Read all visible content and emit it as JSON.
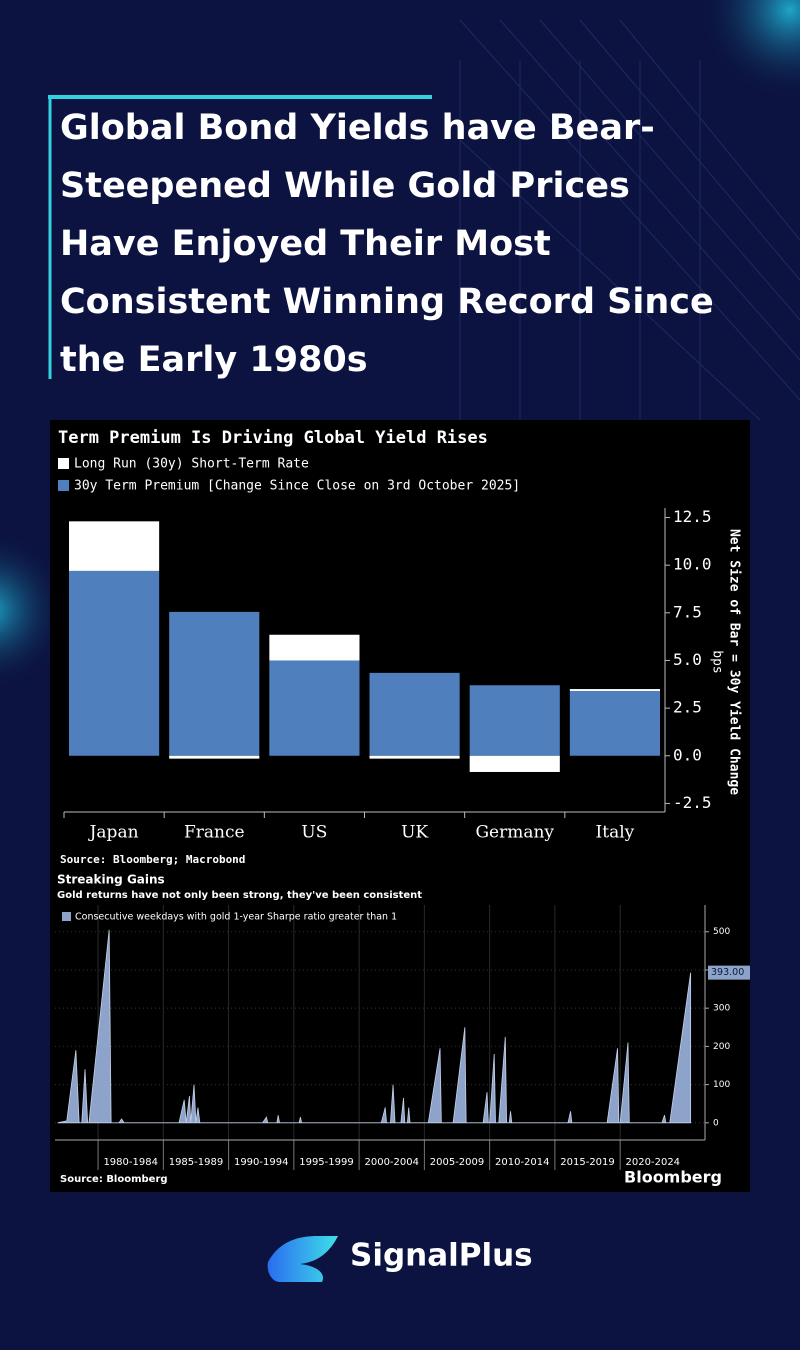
{
  "header": {
    "title": "Global Bond Yields have Bear-Steepened While Gold Prices Have Enjoyed Their Most Consistent Winning Record Since the Early 1980s"
  },
  "chart_data": [
    {
      "type": "bar",
      "stacked": true,
      "title": "Term Premium Is Driving Global Yield Rises",
      "categories": [
        "Japan",
        "France",
        "US",
        "UK",
        "Germany",
        "Italy"
      ],
      "series": [
        {
          "name": "Long Run (30y) Short-Term Rate",
          "color": "#ffffff",
          "values": [
            2.6,
            -0.15,
            1.35,
            -0.15,
            -0.85,
            0.1
          ]
        },
        {
          "name": "30y Term Premium [Change Since Close on 3rd October 2025]",
          "color": "#4f7fbd",
          "values": [
            9.7,
            7.55,
            5.0,
            4.35,
            3.7,
            3.4
          ]
        }
      ],
      "ylabel": "Net Size of Bar = 30y Yield Change",
      "yunit": "bps",
      "ylim": [
        -2.95,
        13.0
      ],
      "yticks": [
        12.5,
        {
          "value": 10,
          "label": "10.0"
        },
        7.5,
        {
          "value": 5,
          "label": "5.0"
        },
        2.5,
        {
          "value": 0,
          "label": "0.0"
        },
        -2.5
      ],
      "grid": false,
      "source": "Source: Bloomberg; Macrobond"
    },
    {
      "type": "area",
      "title": "Streaking Gains",
      "subtitle": "Gold returns have not only been strong, they've been consistent",
      "x": [
        1976.9,
        1977.6,
        1978.3,
        1978.55,
        1978.75,
        1979.0,
        1979.2,
        1979.3,
        1980.85,
        1981.0,
        1981.6,
        1981.8,
        1982.0,
        1986.2,
        1986.6,
        1986.75,
        1987.0,
        1987.1,
        1987.35,
        1987.5,
        1987.65,
        1987.8,
        1992.6,
        1992.9,
        1993.0,
        1993.7,
        1993.8,
        1993.9,
        1995.4,
        1995.5,
        1995.6,
        2001.7,
        2002.0,
        2002.1,
        2002.4,
        2002.6,
        2002.75,
        2003.2,
        2003.4,
        2003.5,
        2003.7,
        2003.8,
        2003.9,
        2005.3,
        2006.2,
        2006.3,
        2007.2,
        2008.1,
        2008.2,
        2009.5,
        2009.8,
        2009.9,
        2010.0,
        2010.35,
        2010.45,
        2010.7,
        2011.2,
        2011.3,
        2011.5,
        2011.6,
        2011.7,
        2016.0,
        2016.2,
        2016.3,
        2019.0,
        2019.8,
        2019.9,
        2020.0,
        2020.6,
        2020.7,
        2023.2,
        2023.4,
        2023.5,
        2023.8,
        2025.4
      ],
      "series": [
        {
          "name": "Consecutive weekdays with gold 1-year Sharpe ratio greater than 1",
          "color": "#8ea3c9",
          "values": [
            0,
            5,
            190,
            0,
            0,
            140,
            0,
            0,
            505,
            0,
            0,
            10,
            0,
            0,
            60,
            0,
            70,
            0,
            100,
            0,
            40,
            0,
            0,
            15,
            0,
            0,
            20,
            0,
            0,
            15,
            0,
            0,
            40,
            0,
            0,
            100,
            0,
            0,
            65,
            0,
            0,
            40,
            0,
            0,
            195,
            0,
            0,
            250,
            0,
            0,
            80,
            0,
            0,
            180,
            0,
            0,
            225,
            0,
            0,
            30,
            0,
            0,
            30,
            0,
            0,
            195,
            0,
            0,
            210,
            0,
            0,
            20,
            0,
            0,
            393
          ],
          "value_labels": [
            null,
            null,
            null,
            null,
            null,
            null,
            null,
            null,
            null,
            null,
            null,
            null,
            null,
            null,
            null,
            null,
            null,
            null,
            null,
            null,
            null,
            null,
            null,
            null,
            null,
            null,
            null,
            null,
            null,
            null,
            null,
            null,
            null,
            null,
            null,
            null,
            null,
            null,
            null,
            null,
            null,
            null,
            null,
            null,
            null,
            null,
            null,
            null,
            null,
            null,
            null,
            null,
            null,
            null,
            null,
            null,
            null,
            null,
            null,
            null,
            null,
            null,
            null,
            null,
            null,
            null,
            null,
            null,
            null,
            null,
            null,
            null,
            null,
            null,
            "393.00"
          ]
        }
      ],
      "xlim": [
        1976.7,
        2026.5
      ],
      "xticks": [
        {
          "value": 1980,
          "label": "1980-1984"
        },
        {
          "value": 1985,
          "label": "1985-1989"
        },
        {
          "value": 1990,
          "label": "1990-1994"
        },
        {
          "value": 1995,
          "label": "1995-1999"
        },
        {
          "value": 2000,
          "label": "2000-2004"
        },
        {
          "value": 2005,
          "label": "2005-2009"
        },
        {
          "value": 2010,
          "label": "2010-2014"
        },
        {
          "value": 2015,
          "label": "2015-2019"
        },
        {
          "value": 2020,
          "label": "2020-2024"
        }
      ],
      "ylim": [
        -45,
        570
      ],
      "yticks": [
        0,
        100,
        200,
        300,
        400,
        500
      ],
      "grid": true,
      "source": "Source: Bloomberg",
      "brand": "Bloomberg"
    }
  ],
  "footer": {
    "brand": "SignalPlus"
  }
}
